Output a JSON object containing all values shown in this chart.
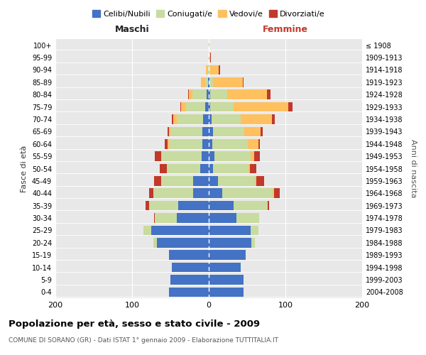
{
  "age_groups": [
    "0-4",
    "5-9",
    "10-14",
    "15-19",
    "20-24",
    "25-29",
    "30-34",
    "35-39",
    "40-44",
    "45-49",
    "50-54",
    "55-59",
    "60-64",
    "65-69",
    "70-74",
    "75-79",
    "80-84",
    "85-89",
    "90-94",
    "95-99",
    "100+"
  ],
  "birth_years": [
    "2004-2008",
    "1999-2003",
    "1994-1998",
    "1989-1993",
    "1984-1988",
    "1979-1983",
    "1974-1978",
    "1969-1973",
    "1964-1968",
    "1959-1963",
    "1954-1958",
    "1949-1953",
    "1944-1948",
    "1939-1943",
    "1934-1938",
    "1929-1933",
    "1924-1928",
    "1919-1923",
    "1914-1918",
    "1909-1913",
    "≤ 1908"
  ],
  "maschi_celibi": [
    52,
    50,
    48,
    52,
    68,
    75,
    42,
    40,
    20,
    20,
    11,
    9,
    8,
    8,
    7,
    5,
    3,
    1,
    0,
    0,
    0
  ],
  "maschi_coniugati": [
    0,
    0,
    0,
    0,
    4,
    10,
    28,
    38,
    52,
    42,
    44,
    52,
    44,
    42,
    35,
    25,
    18,
    4,
    1,
    0,
    0
  ],
  "maschi_vedovi": [
    0,
    0,
    0,
    0,
    0,
    0,
    0,
    0,
    0,
    0,
    0,
    1,
    2,
    2,
    4,
    6,
    5,
    5,
    3,
    0,
    0
  ],
  "maschi_divorziati": [
    0,
    0,
    0,
    0,
    0,
    0,
    1,
    4,
    6,
    9,
    9,
    8,
    3,
    2,
    2,
    1,
    1,
    0,
    0,
    0,
    0
  ],
  "femmine_nubili": [
    45,
    45,
    42,
    48,
    56,
    55,
    36,
    32,
    18,
    12,
    6,
    7,
    5,
    6,
    4,
    2,
    2,
    1,
    0,
    0,
    0
  ],
  "femmine_coniugate": [
    0,
    0,
    0,
    0,
    4,
    10,
    30,
    45,
    65,
    48,
    46,
    48,
    46,
    40,
    38,
    30,
    22,
    5,
    2,
    0,
    0
  ],
  "femmine_vedove": [
    0,
    0,
    0,
    0,
    0,
    0,
    0,
    0,
    2,
    2,
    2,
    4,
    14,
    22,
    40,
    72,
    52,
    38,
    11,
    2,
    1
  ],
  "femmine_divorziate": [
    0,
    0,
    0,
    0,
    0,
    0,
    0,
    2,
    8,
    10,
    8,
    8,
    2,
    2,
    4,
    5,
    5,
    1,
    2,
    1,
    0
  ],
  "color_celibi": "#4472c4",
  "color_coniugati": "#c8dba0",
  "color_vedovi": "#ffc060",
  "color_divorziati": "#c0392b",
  "title": "Popolazione per età, sesso e stato civile - 2009",
  "subtitle": "COMUNE DI SORANO (GR) - Dati ISTAT 1° gennaio 2009 - Elaborazione TUTTITALIA.IT",
  "label_maschi": "Maschi",
  "label_femmine": "Femmine",
  "ylabel_left": "Fasce di età",
  "ylabel_right": "Anni di nascita",
  "legend_labels": [
    "Celibi/Nubili",
    "Coniugati/e",
    "Vedovi/e",
    "Divorziati/e"
  ],
  "xlim": 200,
  "bar_height": 0.78
}
